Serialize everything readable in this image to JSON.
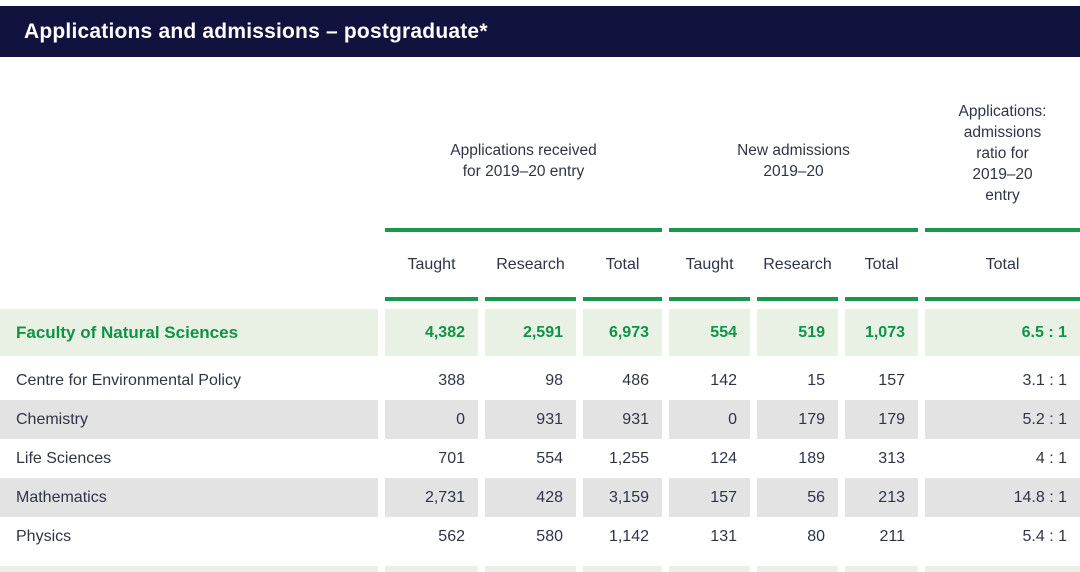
{
  "title": "Applications and admissions – postgraduate*",
  "colors": {
    "navy": "#12123e",
    "green_rule": "#17984b",
    "green_text": "#0d9446",
    "green_row_bg": "#e9f1e5",
    "gray_row_bg": "#e3e3e3",
    "text": "#2f3448"
  },
  "table": {
    "groups": [
      {
        "id": "applications-received",
        "label_lines": [
          "Applications received",
          "for 2019–20 entry"
        ]
      },
      {
        "id": "new-admissions",
        "label_lines": [
          "New admissions",
          "2019–20"
        ]
      },
      {
        "id": "applications-admissions-ratio",
        "label_lines": [
          "Applications:",
          "admissions",
          "ratio for",
          "2019–20",
          "entry"
        ]
      }
    ],
    "columns": [
      "Taught",
      "Research",
      "Total",
      "Taught",
      "Research",
      "Total",
      "Total"
    ],
    "rows": [
      {
        "label": "Faculty of Natural Sciences",
        "values": [
          "4,382",
          "2,591",
          "6,973",
          "554",
          "519",
          "1,073",
          "6.5 : 1"
        ],
        "highlight": true,
        "shaded": false
      },
      {
        "label": "Centre for Environmental Policy",
        "values": [
          "388",
          "98",
          "486",
          "142",
          "15",
          "157",
          "3.1 : 1"
        ],
        "highlight": false,
        "shaded": false
      },
      {
        "label": "Chemistry",
        "values": [
          "0",
          "931",
          "931",
          "0",
          "179",
          "179",
          "5.2 : 1"
        ],
        "highlight": false,
        "shaded": true
      },
      {
        "label": "Life Sciences",
        "values": [
          "701",
          "554",
          "1,255",
          "124",
          "189",
          "313",
          "4 : 1"
        ],
        "highlight": false,
        "shaded": false
      },
      {
        "label": "Mathematics",
        "values": [
          "2,731",
          "428",
          "3,159",
          "157",
          "56",
          "213",
          "14.8 : 1"
        ],
        "highlight": false,
        "shaded": true
      },
      {
        "label": "Physics",
        "values": [
          "562",
          "580",
          "1,142",
          "131",
          "80",
          "211",
          "5.4 : 1"
        ],
        "highlight": false,
        "shaded": false
      }
    ]
  }
}
